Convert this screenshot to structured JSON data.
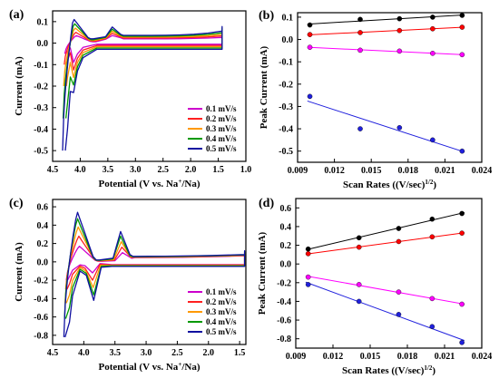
{
  "colors": {
    "s1": "#cc00cc",
    "s2": "#ff2020",
    "s3": "#ff9900",
    "s4": "#009900",
    "s5": "#1010a0",
    "anodic_high": "#000000",
    "anodic_low": "#ff0000",
    "cathodic_low": "#ff00ff",
    "cathodic_high": "#2020dd"
  },
  "chart_data": [
    {
      "panel": "(a)",
      "type": "line",
      "xlabel": "Potential (V vs. Na+/Na)",
      "ylabel": "Current (mA)",
      "xlim": [
        4.5,
        1.0
      ],
      "ylim": [
        -0.55,
        0.15
      ],
      "xticks": [
        "4.5",
        "4.0",
        "3.5",
        "3.0",
        "2.5",
        "2.0",
        "1.5",
        "1.0"
      ],
      "yticks": [
        "0.1",
        "0.0",
        "-0.1",
        "-0.2",
        "-0.3",
        "-0.4",
        "-0.5"
      ],
      "legend_position": "bottom-right",
      "legend": [
        "0.1 mV/s",
        "0.2 mV/s",
        "0.3 mV/s",
        "0.4 mV/s",
        "0.5 mV/s"
      ],
      "anodic_peaks": {
        "potential": [
          4.07,
          4.08,
          4.09,
          4.1,
          4.11
        ],
        "current": [
          0.035,
          0.05,
          0.07,
          0.09,
          0.11
        ]
      },
      "cathodic_peaks": {
        "potential": [
          4.23,
          4.24,
          4.25,
          4.26,
          4.27
        ],
        "current": [
          -0.05,
          -0.1,
          -0.2,
          -0.35,
          -0.5
        ]
      }
    },
    {
      "panel": "(b)",
      "type": "scatter",
      "xlabel": "Scan Rates ((V/sec)1/2)",
      "ylabel": "Peak Current (mA)",
      "xlim": [
        0.009,
        0.024
      ],
      "ylim": [
        -0.55,
        0.12
      ],
      "xticks": [
        "0.009",
        "0.012",
        "0.015",
        "0.018",
        "0.021",
        "0.024"
      ],
      "yticks": [
        "0.1",
        "0.0",
        "-0.1",
        "-0.2",
        "-0.3",
        "-0.4",
        "-0.5"
      ],
      "x": [
        0.01,
        0.0141,
        0.0173,
        0.02,
        0.0224
      ],
      "series": [
        {
          "values": [
            0.065,
            0.09,
            0.093,
            0.1,
            0.108
          ]
        },
        {
          "values": [
            0.022,
            0.031,
            0.04,
            0.048,
            0.055
          ]
        },
        {
          "values": [
            -0.035,
            -0.048,
            -0.052,
            -0.062,
            -0.068
          ]
        },
        {
          "values": [
            -0.255,
            -0.4,
            -0.395,
            -0.45,
            -0.5
          ]
        }
      ]
    },
    {
      "panel": "(c)",
      "type": "line",
      "xlabel": "Potential (V vs. Na+/Na)",
      "ylabel": "Current (mA)",
      "xlim": [
        4.5,
        1.4
      ],
      "ylim": [
        -0.9,
        0.68
      ],
      "xticks": [
        "4.5",
        "4.0",
        "3.5",
        "3.0",
        "2.5",
        "2.0",
        "1.5"
      ],
      "yticks": [
        "0.6",
        "0.4",
        "0.2",
        "0.0",
        "-0.2",
        "-0.4",
        "-0.6",
        "-0.8"
      ],
      "legend_position": "bottom-right",
      "legend": [
        "0.1 mV/s",
        "0.2 mV/s",
        "0.3 mV/s",
        "0.4 mV/s",
        "0.5 mV/s"
      ],
      "anodic_peaks": {
        "potential": [
          4.07,
          4.08,
          4.09,
          4.1,
          4.1
        ],
        "current": [
          0.17,
          0.28,
          0.38,
          0.47,
          0.54
        ]
      },
      "anodic_peaks_2": {
        "potential": [
          3.38,
          3.39,
          3.4,
          3.41,
          3.41
        ],
        "current": [
          0.1,
          0.16,
          0.22,
          0.28,
          0.33
        ]
      },
      "cathodic_peaks": {
        "potential": [
          4.26,
          4.27,
          4.28,
          4.29,
          4.3
        ],
        "current": [
          -0.2,
          -0.3,
          -0.45,
          -0.62,
          -0.82
        ]
      },
      "cathodic_peaks_2": {
        "potential": [
          3.86,
          3.86,
          3.85,
          3.84,
          3.84
        ],
        "current": [
          -0.12,
          -0.2,
          -0.28,
          -0.36,
          -0.42
        ]
      }
    },
    {
      "panel": "(d)",
      "type": "scatter",
      "xlabel": "Scan Rates ((V/sec)1/2)",
      "ylabel": "Peak Current (mA)",
      "xlim": [
        0.009,
        0.024
      ],
      "ylim": [
        -0.9,
        0.7
      ],
      "xticks": [
        "0.009",
        "0.012",
        "0.015",
        "0.018",
        "0.021",
        "0.024"
      ],
      "yticks": [
        "0.6",
        "0.4",
        "0.2",
        "0.0",
        "-0.2",
        "-0.4",
        "-0.6",
        "-0.8"
      ],
      "x": [
        0.01,
        0.0141,
        0.0173,
        0.02,
        0.0224
      ],
      "series": [
        {
          "values": [
            0.16,
            0.28,
            0.38,
            0.48,
            0.54
          ]
        },
        {
          "values": [
            0.11,
            0.18,
            0.24,
            0.29,
            0.33
          ]
        },
        {
          "values": [
            -0.14,
            -0.22,
            -0.3,
            -0.37,
            -0.43
          ]
        },
        {
          "values": [
            -0.22,
            -0.4,
            -0.54,
            -0.67,
            -0.84
          ]
        }
      ]
    }
  ]
}
